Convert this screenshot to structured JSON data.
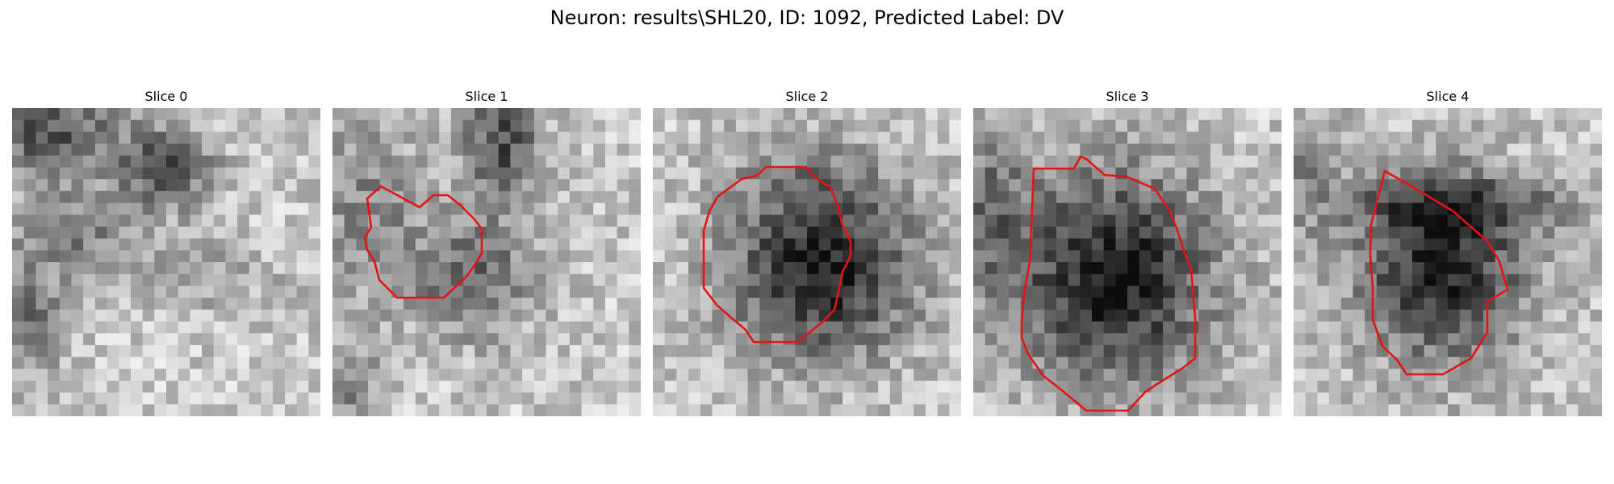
{
  "figure": {
    "title": "Neuron: results\\SHL20, ID: 1092, Predicted Label: DV"
  },
  "panels": [
    {
      "title": "Slice 0",
      "has_contour": false
    },
    {
      "title": "Slice 1",
      "has_contour": true
    },
    {
      "title": "Slice 2",
      "has_contour": true
    },
    {
      "title": "Slice 3",
      "has_contour": true
    },
    {
      "title": "Slice 4",
      "has_contour": true
    }
  ],
  "colors": {
    "contour": "#e31414",
    "image_colormap": "gray"
  }
}
